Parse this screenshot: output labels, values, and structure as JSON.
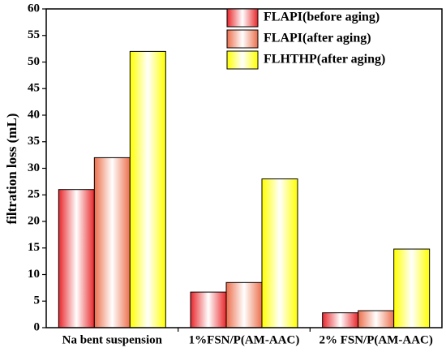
{
  "chart_data": {
    "type": "bar",
    "y_label": "filtration loss (mL)",
    "categories": [
      "Na bent suspension",
      "1%FSN/P(AM-AAC)",
      "2% FSN/P(AM-AAC)"
    ],
    "series": [
      {
        "name": "FLAPI(before aging)",
        "color": "#e8262b",
        "values": [
          26,
          6.7,
          2.8
        ]
      },
      {
        "name": "FLAPI(after aging)",
        "color": "#ec6f4c",
        "values": [
          32,
          8.5,
          3.2
        ]
      },
      {
        "name": "FLHTHP(after aging)",
        "color": "#ffff00",
        "values": [
          52,
          28,
          14.8
        ]
      }
    ],
    "ylim": [
      0,
      60
    ],
    "yticks": [
      0,
      5,
      10,
      15,
      20,
      25,
      30,
      35,
      40,
      45,
      50,
      55,
      60
    ],
    "grid": false,
    "legend": "top-right"
  }
}
